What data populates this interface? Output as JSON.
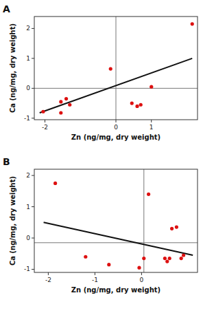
{
  "chart_data": [
    {
      "type": "scatter",
      "title": "A",
      "xlabel": "Zn (ng/mg, dry weight)",
      "ylabel": "Ca (ng/mg, dry weight)",
      "xlim": [
        -2.3,
        2.3
      ],
      "ylim": [
        -1.05,
        2.4
      ],
      "xticks": [
        -2,
        0,
        1
      ],
      "yticks": [
        -1,
        0,
        1,
        2
      ],
      "grid": false,
      "hline_y": 0.0,
      "vline_x": 0.0,
      "series": [
        {
          "type": "scatter",
          "color": "#dd1111",
          "x": [
            -2.05,
            -1.55,
            -1.4,
            -1.3,
            -1.55,
            -0.15,
            0.45,
            0.6,
            0.7,
            1.0,
            2.15
          ],
          "values": [
            -0.78,
            -0.45,
            -0.35,
            -0.55,
            -0.82,
            0.65,
            -0.5,
            -0.6,
            -0.55,
            0.05,
            2.15
          ]
        },
        {
          "type": "line",
          "color": "#111111",
          "x": [
            -2.15,
            2.15
          ],
          "values": [
            -0.82,
            1.0
          ]
        }
      ]
    },
    {
      "type": "scatter",
      "title": "B",
      "xlabel": "Zn (ng/mg, dry weight)",
      "ylabel": "Ca (ng/mg, dry weight)",
      "xlim": [
        -2.3,
        1.2
      ],
      "ylim": [
        -1.1,
        2.2
      ],
      "xticks": [
        -2,
        -1,
        0
      ],
      "yticks": [
        -1,
        0,
        1,
        2
      ],
      "grid": false,
      "hline_y": -0.15,
      "vline_x": 0.05,
      "series": [
        {
          "type": "scatter",
          "color": "#dd1111",
          "x": [
            -1.85,
            -1.2,
            -0.7,
            -0.05,
            0.05,
            0.6,
            0.75,
            0.85,
            0.9,
            0.15,
            0.5,
            0.55,
            0.65
          ],
          "values": [
            1.75,
            -0.6,
            -0.85,
            -0.95,
            -0.65,
            -0.65,
            0.35,
            -0.65,
            -0.55,
            1.4,
            -0.65,
            -0.75,
            0.3
          ]
        },
        {
          "type": "line",
          "color": "#111111",
          "x": [
            -2.1,
            1.1
          ],
          "values": [
            0.5,
            -0.55
          ]
        }
      ]
    }
  ]
}
